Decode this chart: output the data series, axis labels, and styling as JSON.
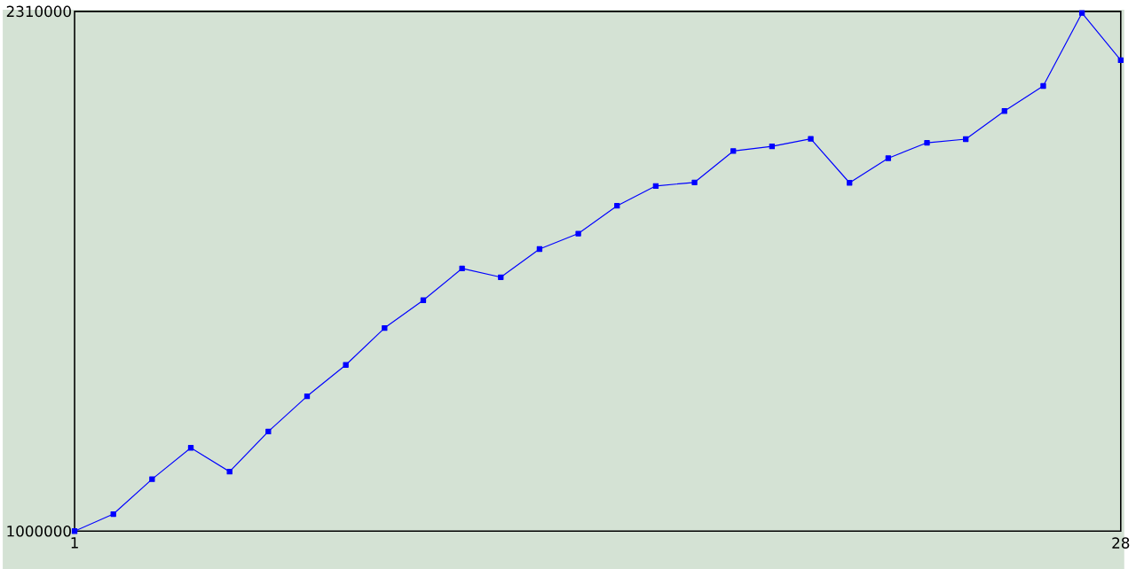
{
  "chart_data": {
    "type": "line",
    "marker": "square",
    "color": "#0000ff",
    "x": [
      1,
      2,
      3,
      4,
      5,
      6,
      7,
      8,
      9,
      10,
      11,
      12,
      13,
      14,
      15,
      16,
      17,
      18,
      19,
      20,
      21,
      22,
      23,
      24,
      25,
      26,
      27,
      28
    ],
    "values": [
      1000000,
      1043000,
      1131000,
      1210000,
      1150000,
      1251000,
      1340000,
      1419000,
      1512000,
      1582000,
      1662000,
      1640000,
      1711000,
      1750000,
      1820000,
      1870000,
      1879000,
      1958000,
      1970000,
      1989000,
      1878000,
      1940000,
      1979000,
      1988000,
      2059000,
      2122000,
      2306000,
      2187000
    ],
    "xlim": [
      1,
      28
    ],
    "xticks": [
      1,
      28
    ],
    "ylim": [
      1000000,
      2310000
    ],
    "yticks": [
      1000000,
      2310000
    ]
  }
}
